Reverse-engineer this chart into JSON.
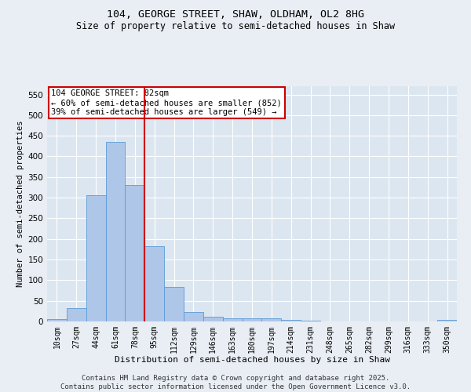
{
  "title1": "104, GEORGE STREET, SHAW, OLDHAM, OL2 8HG",
  "title2": "Size of property relative to semi-detached houses in Shaw",
  "xlabel": "Distribution of semi-detached houses by size in Shaw",
  "ylabel": "Number of semi-detached properties",
  "categories": [
    "10sqm",
    "27sqm",
    "44sqm",
    "61sqm",
    "78sqm",
    "95sqm",
    "112sqm",
    "129sqm",
    "146sqm",
    "163sqm",
    "180sqm",
    "197sqm",
    "214sqm",
    "231sqm",
    "248sqm",
    "265sqm",
    "282sqm",
    "299sqm",
    "316sqm",
    "333sqm",
    "350sqm"
  ],
  "values": [
    5,
    32,
    305,
    435,
    330,
    183,
    83,
    23,
    12,
    7,
    8,
    7,
    4,
    1,
    0,
    0,
    0,
    0,
    0,
    0,
    3
  ],
  "bar_color": "#aec6e8",
  "bar_edgecolor": "#5b9bd5",
  "vline_x_index": 4,
  "vline_color": "#cc0000",
  "annotation_text": "104 GEORGE STREET: 82sqm\n← 60% of semi-detached houses are smaller (852)\n39% of semi-detached houses are larger (549) →",
  "annotation_box_edgecolor": "#cc0000",
  "annotation_fontsize": 7.5,
  "ylim": [
    0,
    570
  ],
  "yticks": [
    0,
    50,
    100,
    150,
    200,
    250,
    300,
    350,
    400,
    450,
    500,
    550
  ],
  "background_color": "#e8eef4",
  "plot_bg_color": "#dce6f0",
  "grid_color": "#ffffff",
  "title1_fontsize": 9.5,
  "title2_fontsize": 8.5,
  "xlabel_fontsize": 8,
  "ylabel_fontsize": 7.5,
  "tick_fontsize": 7,
  "ytick_fontsize": 7.5,
  "footer1": "Contains HM Land Registry data © Crown copyright and database right 2025.",
  "footer2": "Contains public sector information licensed under the Open Government Licence v3.0.",
  "footer_fontsize": 6.5
}
